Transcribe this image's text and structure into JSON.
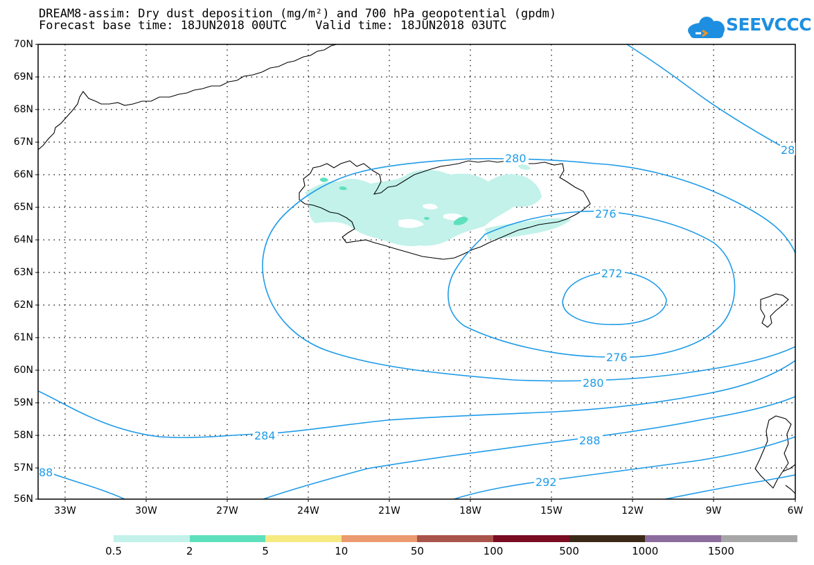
{
  "title_line1": "DREAM8-assim: Dry dust deposition (mg/m²) and 700 hPa geopotential (gpdm)",
  "title_line2": "Forecast base time: 18JUN2018 00UTC    Valid time: 18JUN2018 03UTC",
  "logo_text": "SEEVCCC",
  "colors": {
    "logo_blue": "#1e8fe0",
    "logo_orange": "#f29423",
    "contour": "#1e9be8",
    "coast": "#000000",
    "grid": "#000000"
  },
  "lat_labels": [
    "70N",
    "69N",
    "68N",
    "67N",
    "66N",
    "65N",
    "64N",
    "63N",
    "62N",
    "61N",
    "60N",
    "59N",
    "58N",
    "57N",
    "56N"
  ],
  "lon_labels": [
    "33W",
    "30W",
    "27W",
    "24W",
    "21W",
    "18W",
    "15W",
    "12W",
    "9W",
    "6W"
  ],
  "contour_labels": {
    "c280_top": "280",
    "c28_right": "28",
    "c276_top": "276",
    "c272": "272",
    "c276_bottom": "276",
    "c280_bottom": "280",
    "c284": "284",
    "c288": "288",
    "c292": "292",
    "c88_left": "88"
  },
  "colorbar": {
    "colors": [
      "#c2f2ea",
      "#5fe0bd",
      "#f6ea82",
      "#ec9a70",
      "#a9544a",
      "#7a0c22",
      "#3b2918",
      "#8c6c9e",
      "#a7a7a7"
    ],
    "labels": [
      "0.5",
      "2",
      "5",
      "10",
      "50",
      "100",
      "500",
      "1000",
      "1500"
    ]
  },
  "dust_colors": {
    "light": "#c2f2ea",
    "medium": "#5fe0bd"
  }
}
